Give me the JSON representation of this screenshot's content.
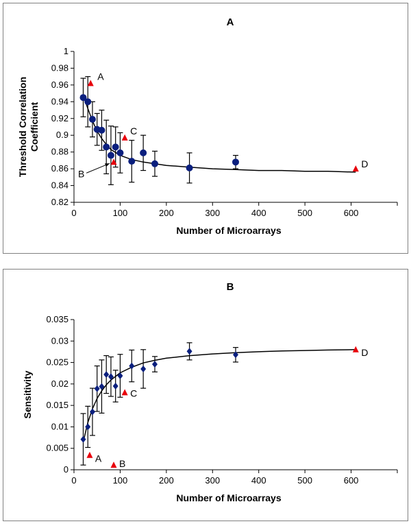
{
  "chart_data": [
    {
      "type": "scatter",
      "title": "A",
      "xlabel": "Number of Microarrays",
      "ylabel": "Threshold Correlation Coefficient",
      "xlim": [
        0,
        700
      ],
      "ylim": [
        0.82,
        1
      ],
      "xticks": [
        0,
        100,
        200,
        300,
        400,
        500,
        600
      ],
      "yticks": [
        0.82,
        0.84,
        0.86,
        0.88,
        0.9,
        0.92,
        0.94,
        0.96,
        0.98,
        1
      ],
      "xtick_labels": [
        "0",
        "100",
        "200",
        "300",
        "400",
        "500",
        "600"
      ],
      "ytick_labels": [
        "0.82",
        "0.84",
        "0.86",
        "0.88",
        "0.9",
        "0.92",
        "0.94",
        "0.96",
        "0.98",
        "1"
      ],
      "grid": false,
      "marker": "circle",
      "series": [
        {
          "x": [
            20,
            30,
            40,
            50,
            60,
            70,
            80,
            90,
            100,
            125,
            150,
            175,
            250,
            350
          ],
          "y": [
            0.945,
            0.94,
            0.919,
            0.907,
            0.906,
            0.886,
            0.876,
            0.886,
            0.879,
            0.869,
            0.879,
            0.866,
            0.861,
            0.868
          ],
          "err": [
            0.023,
            0.03,
            0.021,
            0.019,
            0.024,
            0.032,
            0.035,
            0.024,
            0.024,
            0.025,
            0.021,
            0.015,
            0.018,
            0.008
          ]
        }
      ],
      "fit_curve": {
        "x": [
          20,
          30,
          40,
          50,
          60,
          70,
          80,
          100,
          125,
          150,
          175,
          200,
          250,
          300,
          350,
          400,
          450,
          500,
          550,
          610
        ],
        "y": [
          0.947,
          0.932,
          0.917,
          0.905,
          0.896,
          0.889,
          0.883,
          0.876,
          0.871,
          0.868,
          0.866,
          0.864,
          0.862,
          0.86,
          0.859,
          0.858,
          0.858,
          0.857,
          0.857,
          0.856
        ]
      },
      "special_points": [
        {
          "label": "A",
          "x": 36,
          "y": 0.962
        },
        {
          "label": "B",
          "x": 86,
          "y": 0.868
        },
        {
          "label": "C",
          "x": 110,
          "y": 0.897
        },
        {
          "label": "D",
          "x": 610,
          "y": 0.86
        }
      ],
      "special_color": "#e8000b",
      "series_color": "#0a1f7e"
    },
    {
      "type": "scatter",
      "title": "B",
      "xlabel": "Number of Microarrays",
      "ylabel": "Sensitivity",
      "xlim": [
        0,
        700
      ],
      "ylim": [
        0,
        0.035
      ],
      "xticks": [
        0,
        100,
        200,
        300,
        400,
        500,
        600
      ],
      "yticks": [
        0,
        0.005,
        0.01,
        0.015,
        0.02,
        0.025,
        0.03,
        0.035
      ],
      "xtick_labels": [
        "0",
        "100",
        "200",
        "300",
        "400",
        "500",
        "600"
      ],
      "ytick_labels": [
        "0",
        "0.005",
        "0.01",
        "0.015",
        "0.02",
        "0.025",
        "0.03",
        "0.035"
      ],
      "grid": false,
      "marker": "diamond",
      "series": [
        {
          "x": [
            20,
            30,
            40,
            50,
            60,
            70,
            80,
            90,
            100,
            125,
            150,
            175,
            250,
            350
          ],
          "y": [
            0.0071,
            0.01,
            0.0135,
            0.0189,
            0.0194,
            0.0222,
            0.0217,
            0.0195,
            0.0219,
            0.0242,
            0.0235,
            0.0246,
            0.0276,
            0.0268
          ],
          "err": [
            0.006,
            0.0048,
            0.0055,
            0.0053,
            0.0062,
            0.0044,
            0.0046,
            0.0037,
            0.005,
            0.0037,
            0.0045,
            0.0018,
            0.002,
            0.0017
          ]
        }
      ],
      "fit_curve": {
        "x": [
          20,
          30,
          40,
          50,
          60,
          70,
          80,
          100,
          125,
          150,
          175,
          200,
          250,
          300,
          350,
          400,
          450,
          500,
          550,
          610
        ],
        "y": [
          0.0065,
          0.011,
          0.0142,
          0.0166,
          0.0184,
          0.0198,
          0.0209,
          0.0226,
          0.0239,
          0.0249,
          0.0255,
          0.026,
          0.0266,
          0.027,
          0.0273,
          0.0275,
          0.0277,
          0.0278,
          0.0279,
          0.028
        ]
      },
      "special_points": [
        {
          "label": "A",
          "x": 34,
          "y": 0.0034
        },
        {
          "label": "B",
          "x": 86,
          "y": 0.0011
        },
        {
          "label": "C",
          "x": 110,
          "y": 0.018
        },
        {
          "label": "D",
          "x": 610,
          "y": 0.028
        }
      ],
      "special_color": "#e8000b",
      "series_color": "#0a1f7e"
    }
  ]
}
